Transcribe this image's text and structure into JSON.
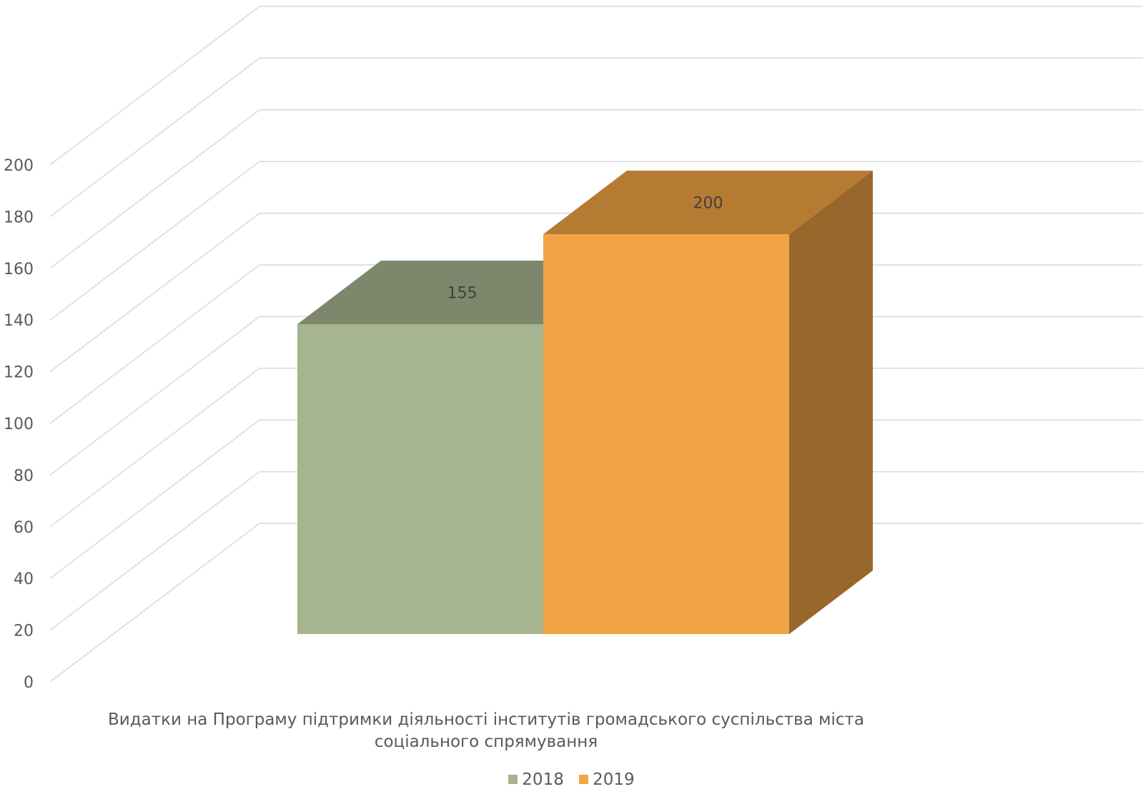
{
  "chart_data": {
    "type": "bar",
    "title": "",
    "categories": [
      "Видатки на Програму підтримки діяльності інститутів громадського суспільства міста соціального спрямування"
    ],
    "category_label_lines": [
      "Видатки на Програму підтримки діяльності інститутів громадського суспільства міста",
      "соціального спрямування"
    ],
    "series": [
      {
        "name": "2018",
        "values": [
          155
        ],
        "color": "#A6B490",
        "data_label": "155"
      },
      {
        "name": "2019",
        "values": [
          200
        ],
        "color": "#F2A444",
        "data_label": "200"
      }
    ],
    "y_ticks": [
      "0",
      "20",
      "40",
      "60",
      "80",
      "100",
      "120",
      "140",
      "160",
      "180",
      "200"
    ],
    "ylim": [
      0,
      200
    ],
    "grid": true,
    "legend_position": "bottom",
    "three_d": true
  }
}
